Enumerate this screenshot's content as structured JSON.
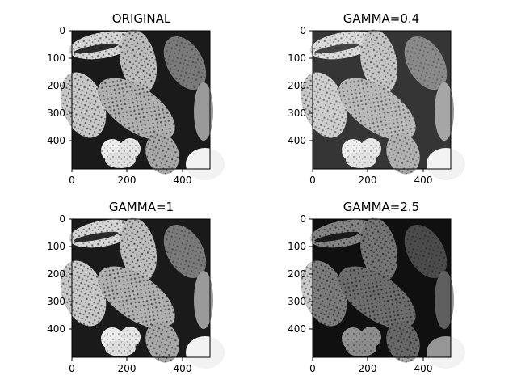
{
  "figure": {
    "background": "#ffffff",
    "panels": [
      {
        "title": "ORIGINAL",
        "gamma": null,
        "xticks": [
          "0",
          "200",
          "400"
        ],
        "yticks": [
          "0",
          "100",
          "200",
          "300",
          "400"
        ]
      },
      {
        "title": "GAMMA=0.4",
        "gamma": 0.4,
        "xticks": [
          "0",
          "200",
          "400"
        ],
        "yticks": [
          "0",
          "100",
          "200",
          "300",
          "400"
        ]
      },
      {
        "title": "GAMMA=1",
        "gamma": 1,
        "xticks": [
          "0",
          "200",
          "400"
        ],
        "yticks": [
          "0",
          "100",
          "200",
          "300",
          "400"
        ]
      },
      {
        "title": "GAMMA=2.5",
        "gamma": 2.5,
        "xticks": [
          "0",
          "200",
          "400"
        ],
        "yticks": [
          "0",
          "100",
          "200",
          "300",
          "400"
        ]
      }
    ],
    "image_subject": "grayscale micrograph of pollen grains",
    "axis_range": [
      0,
      500
    ]
  }
}
